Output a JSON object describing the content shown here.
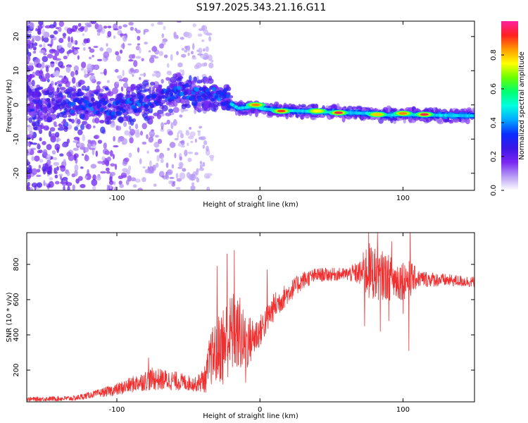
{
  "title": "S197.2025.343.21.16.G11",
  "chart_data": [
    {
      "type": "heatmap",
      "name": "spectrogram",
      "xlabel": "Height of straight line (km)",
      "ylabel": "Frequency (Hz)",
      "xlim": [
        -163,
        150
      ],
      "ylim": [
        -25,
        24.5
      ],
      "xticks": [
        -100,
        0,
        100
      ],
      "xtick_labels": [
        "-100",
        "0",
        "100"
      ],
      "yticks": [
        -20,
        -10,
        0,
        10,
        20
      ],
      "ytick_labels": [
        "-20",
        "-10",
        "0",
        "10",
        "20"
      ],
      "colorbar": {
        "label": "Normalized spectral amplitude",
        "range": [
          0,
          1
        ],
        "ticks": [
          0.0,
          0.2,
          0.4,
          0.6,
          0.8
        ],
        "tick_labels": [
          "0.0",
          "0.2",
          "0.4",
          "0.6",
          "0.8"
        ],
        "colors": [
          "#ffffff",
          "#b79cf5",
          "#7a26f2",
          "#3a16e6",
          "#0a2cff",
          "#00a8ff",
          "#00ffe0",
          "#00ff70",
          "#6aff00",
          "#ffff00",
          "#ff9a00",
          "#ff2020",
          "#ff20a0"
        ]
      },
      "ridge": [
        {
          "x": -160,
          "freq": 0.0
        },
        {
          "x": -120,
          "freq": 0.0
        },
        {
          "x": -100,
          "freq": -1.0
        },
        {
          "x": -80,
          "freq": 0.5
        },
        {
          "x": -65,
          "freq": 2.5
        },
        {
          "x": -55,
          "freq": 4.5
        },
        {
          "x": -45,
          "freq": 3.0
        },
        {
          "x": -35,
          "freq": 3.5
        },
        {
          "x": -25,
          "freq": 1.5
        },
        {
          "x": -15,
          "freq": -1.0
        },
        {
          "x": -5,
          "freq": -0.5
        },
        {
          "x": 0,
          "freq": -1.0
        },
        {
          "x": 10,
          "freq": -1.5
        },
        {
          "x": 30,
          "freq": -1.8
        },
        {
          "x": 60,
          "freq": -2.3
        },
        {
          "x": 80,
          "freq": -2.5
        },
        {
          "x": 90,
          "freq": -3.0
        },
        {
          "x": 100,
          "freq": -2.8
        },
        {
          "x": 120,
          "freq": -3.0
        },
        {
          "x": 150,
          "freq": -3.2
        }
      ],
      "hotspots": [
        {
          "x": -3,
          "freq": 0.0,
          "amplitude": 0.85
        },
        {
          "x": 15,
          "freq": -1.8,
          "amplitude": 0.9
        },
        {
          "x": 40,
          "freq": -1.8,
          "amplitude": 0.75
        },
        {
          "x": 55,
          "freq": -2.3,
          "amplitude": 0.95
        },
        {
          "x": 82,
          "freq": -2.8,
          "amplitude": 0.8
        },
        {
          "x": 100,
          "freq": -2.5,
          "amplitude": 0.85
        },
        {
          "x": 115,
          "freq": -2.8,
          "amplitude": 0.95
        }
      ]
    },
    {
      "type": "line",
      "name": "snr",
      "xlabel": "Height of straight line (km)",
      "ylabel": "SNR (10 * v/v)",
      "xlim": [
        -163,
        150
      ],
      "ylim": [
        20,
        980
      ],
      "xticks": [
        -100,
        0,
        100
      ],
      "xtick_labels": [
        "-100",
        "0",
        "100"
      ],
      "yticks": [
        200,
        400,
        600,
        800
      ],
      "ytick_labels": [
        "200",
        "400",
        "600",
        "800"
      ],
      "color": "#f03030",
      "series": [
        {
          "name": "SNR",
          "envelope": [
            {
              "x": -163,
              "mean": 35,
              "noise": 12
            },
            {
              "x": -130,
              "mean": 40,
              "noise": 15
            },
            {
              "x": -115,
              "mean": 65,
              "noise": 20
            },
            {
              "x": -100,
              "mean": 90,
              "noise": 35
            },
            {
              "x": -85,
              "mean": 130,
              "noise": 50
            },
            {
              "x": -75,
              "mean": 150,
              "noise": 65
            },
            {
              "x": -60,
              "mean": 140,
              "noise": 55
            },
            {
              "x": -45,
              "mean": 120,
              "noise": 40
            },
            {
              "x": -38,
              "mean": 150,
              "noise": 80
            },
            {
              "x": -35,
              "mean": 260,
              "noise": 150
            },
            {
              "x": -25,
              "mean": 360,
              "noise": 230
            },
            {
              "x": -18,
              "mean": 420,
              "noise": 230
            },
            {
              "x": -10,
              "mean": 350,
              "noise": 170
            },
            {
              "x": -5,
              "mean": 380,
              "noise": 120
            },
            {
              "x": 0,
              "mean": 420,
              "noise": 90
            },
            {
              "x": 10,
              "mean": 560,
              "noise": 80
            },
            {
              "x": 20,
              "mean": 640,
              "noise": 60
            },
            {
              "x": 30,
              "mean": 710,
              "noise": 50
            },
            {
              "x": 40,
              "mean": 740,
              "noise": 40
            },
            {
              "x": 60,
              "mean": 745,
              "noise": 35
            },
            {
              "x": 70,
              "mean": 750,
              "noise": 70
            },
            {
              "x": 75,
              "mean": 760,
              "noise": 170
            },
            {
              "x": 85,
              "mean": 740,
              "noise": 140
            },
            {
              "x": 95,
              "mean": 710,
              "noise": 120
            },
            {
              "x": 105,
              "mean": 720,
              "noise": 110
            },
            {
              "x": 110,
              "mean": 720,
              "noise": 50
            },
            {
              "x": 130,
              "mean": 710,
              "noise": 35
            },
            {
              "x": 150,
              "mean": 700,
              "noise": 30
            }
          ],
          "spikes": [
            {
              "x": -30,
              "value": 790
            },
            {
              "x": -23,
              "value": 860
            },
            {
              "x": -18,
              "value": 880
            },
            {
              "x": -14,
              "value": 610
            },
            {
              "x": -10,
              "value": 130
            },
            {
              "x": -26,
              "value": 120
            },
            {
              "x": -78,
              "value": 270
            },
            {
              "x": 5,
              "value": 770
            },
            {
              "x": 73,
              "value": 450
            },
            {
              "x": 76,
              "value": 1000
            },
            {
              "x": 80,
              "value": 860
            },
            {
              "x": 82,
              "value": 980
            },
            {
              "x": 84,
              "value": 420
            },
            {
              "x": 90,
              "value": 480
            },
            {
              "x": 92,
              "value": 930
            },
            {
              "x": 100,
              "value": 520
            },
            {
              "x": 104,
              "value": 310
            },
            {
              "x": 105,
              "value": 1000
            }
          ]
        }
      ]
    }
  ]
}
